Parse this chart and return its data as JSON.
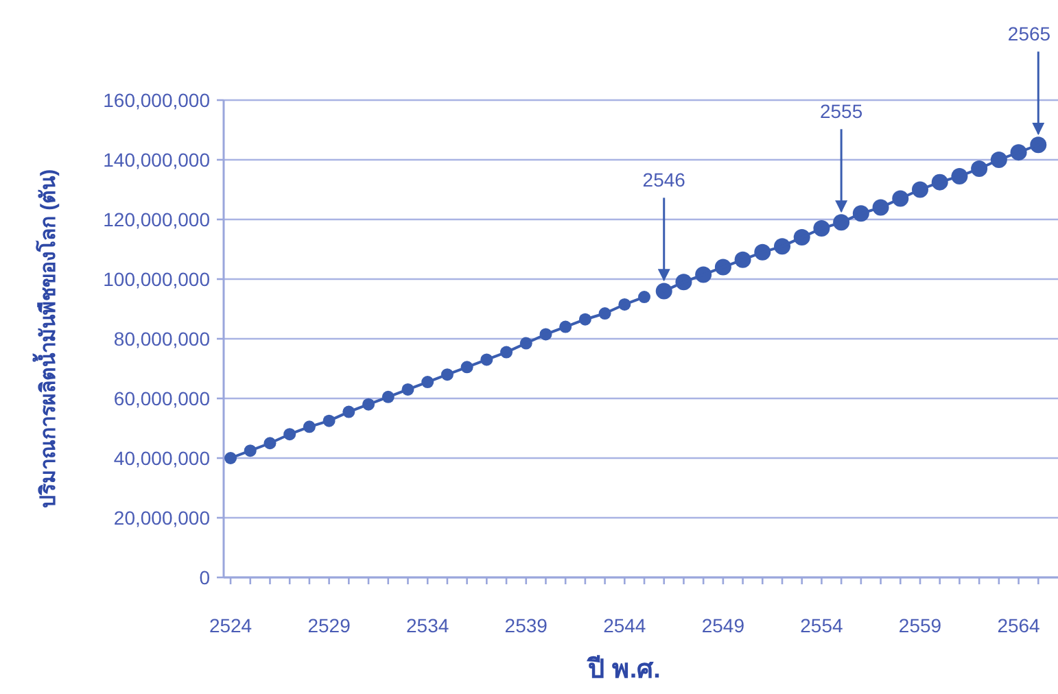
{
  "chart_data": {
    "type": "line",
    "xlabel": "ปี พ.ศ.",
    "ylabel": "ปริมาณการผลิตน้ำมันพืชของโลก (ตัน)",
    "series": [
      {
        "color": "#3a5db0",
        "x": [
          2524,
          2525,
          2526,
          2527,
          2528,
          2529,
          2530,
          2531,
          2532,
          2533,
          2534,
          2535,
          2536,
          2537,
          2538,
          2539,
          2540,
          2541,
          2542,
          2543,
          2544,
          2545
        ],
        "values": [
          40000000,
          42500000,
          45000000,
          48000000,
          50500000,
          52500000,
          55500000,
          58000000,
          60500000,
          63000000,
          65500000,
          68000000,
          70500000,
          73000000,
          75500000,
          78500000,
          81500000,
          84000000,
          86500000,
          88500000,
          91500000,
          94000000
        ]
      },
      {
        "color": "#3a5db0",
        "x": [
          2546,
          2547,
          2548,
          2549,
          2550,
          2551,
          2552,
          2553,
          2554,
          2555,
          2556,
          2557,
          2558,
          2559,
          2560,
          2561,
          2562,
          2563,
          2564,
          2565
        ],
        "values": [
          96000000,
          99000000,
          101500000,
          104000000,
          106500000,
          109000000,
          111000000,
          114000000,
          117000000,
          119000000,
          122000000,
          124000000,
          127000000,
          130000000,
          132500000,
          134500000,
          137000000,
          140000000,
          142500000,
          145000000
        ]
      }
    ],
    "marker": "circle",
    "line_style": "solid",
    "grid": "y",
    "xlim": [
      2523.65,
      2566
    ],
    "xticks": [
      {
        "value": 2524,
        "label": "2524"
      },
      {
        "value": 2525,
        "label": null
      },
      {
        "value": 2526,
        "label": null
      },
      {
        "value": 2527,
        "label": null
      },
      {
        "value": 2528,
        "label": null
      },
      {
        "value": 2529,
        "label": "2529"
      },
      {
        "value": 2530,
        "label": null
      },
      {
        "value": 2531,
        "label": null
      },
      {
        "value": 2532,
        "label": null
      },
      {
        "value": 2533,
        "label": null
      },
      {
        "value": 2534,
        "label": "2534"
      },
      {
        "value": 2535,
        "label": null
      },
      {
        "value": 2536,
        "label": null
      },
      {
        "value": 2537,
        "label": null
      },
      {
        "value": 2538,
        "label": null
      },
      {
        "value": 2539,
        "label": "2539"
      },
      {
        "value": 2540,
        "label": null
      },
      {
        "value": 2541,
        "label": null
      },
      {
        "value": 2542,
        "label": null
      },
      {
        "value": 2543,
        "label": null
      },
      {
        "value": 2544,
        "label": "2544"
      },
      {
        "value": 2545,
        "label": null
      },
      {
        "value": 2546,
        "label": null
      },
      {
        "value": 2547,
        "label": null
      },
      {
        "value": 2548,
        "label": null
      },
      {
        "value": 2549,
        "label": "2549"
      },
      {
        "value": 2550,
        "label": null
      },
      {
        "value": 2551,
        "label": null
      },
      {
        "value": 2552,
        "label": null
      },
      {
        "value": 2553,
        "label": null
      },
      {
        "value": 2554,
        "label": "2554"
      },
      {
        "value": 2555,
        "label": null
      },
      {
        "value": 2556,
        "label": null
      },
      {
        "value": 2557,
        "label": null
      },
      {
        "value": 2558,
        "label": null
      },
      {
        "value": 2559,
        "label": "2559"
      },
      {
        "value": 2560,
        "label": null
      },
      {
        "value": 2561,
        "label": null
      },
      {
        "value": 2562,
        "label": null
      },
      {
        "value": 2563,
        "label": null
      },
      {
        "value": 2564,
        "label": "2564"
      },
      {
        "value": 2565,
        "label": null
      }
    ],
    "ylim": [
      0,
      160000000
    ],
    "yticks": [
      {
        "value": 0,
        "label": "0"
      },
      {
        "value": 20000000,
        "label": "20,000,000"
      },
      {
        "value": 40000000,
        "label": "40,000,000"
      },
      {
        "value": 60000000,
        "label": "60,000,000"
      },
      {
        "value": 80000000,
        "label": "80,000,000"
      },
      {
        "value": 100000000,
        "label": "100,000,000"
      },
      {
        "value": 120000000,
        "label": "120,000,000"
      },
      {
        "value": 140000000,
        "label": "140,000,000"
      },
      {
        "value": 160000000,
        "label": "160,000,000"
      }
    ],
    "annotations": [
      {
        "text": "2546",
        "x": 2546,
        "y": 96000000
      },
      {
        "text": "2555",
        "x": 2555,
        "y": 119000000
      },
      {
        "text": "2565",
        "x": 2565,
        "y": 145000000
      }
    ]
  }
}
